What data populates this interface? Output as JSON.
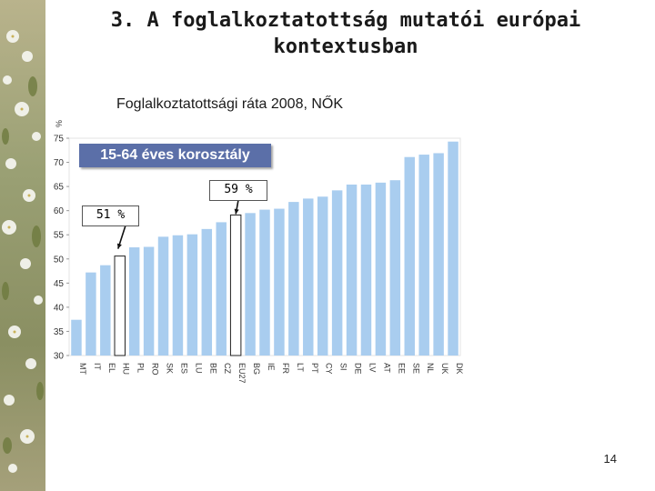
{
  "slide": {
    "title": "3. A foglalkoztatottság mutatói európai kontextusban",
    "page_number": "14"
  },
  "chart_data": {
    "type": "bar",
    "title": "Foglalkoztatottsági ráta 2008, NŐK",
    "ylabel": "%",
    "ylim": [
      30,
      75
    ],
    "yticks": [
      30,
      35,
      40,
      45,
      50,
      55,
      60,
      65,
      70,
      75
    ],
    "grid": false,
    "categories": [
      "MT",
      "IT",
      "EL",
      "HU",
      "PL",
      "RO",
      "SK",
      "ES",
      "LU",
      "BE",
      "CZ",
      "EU27",
      "BG",
      "IE",
      "FR",
      "LT",
      "PT",
      "CY",
      "SI",
      "DE",
      "LV",
      "AT",
      "EE",
      "SE",
      "NL",
      "UK",
      "DK"
    ],
    "values": [
      37.4,
      47.2,
      48.7,
      50.6,
      52.4,
      52.5,
      54.6,
      54.9,
      55.1,
      56.2,
      57.6,
      59.1,
      59.5,
      60.2,
      60.4,
      61.8,
      62.5,
      62.9,
      64.2,
      65.4,
      65.4,
      65.8,
      66.3,
      71.1,
      71.6,
      71.9,
      74.3
    ],
    "highlighted": [
      "HU",
      "EU27"
    ],
    "bar_color": "#a9cdef",
    "highlight_color": "#ffffff",
    "badge": "15-64 éves korosztály",
    "badge_color": "#5b6fa8",
    "callouts": [
      {
        "category": "EU27",
        "label": "59 %"
      },
      {
        "category": "HU",
        "label": "51 %"
      }
    ]
  }
}
